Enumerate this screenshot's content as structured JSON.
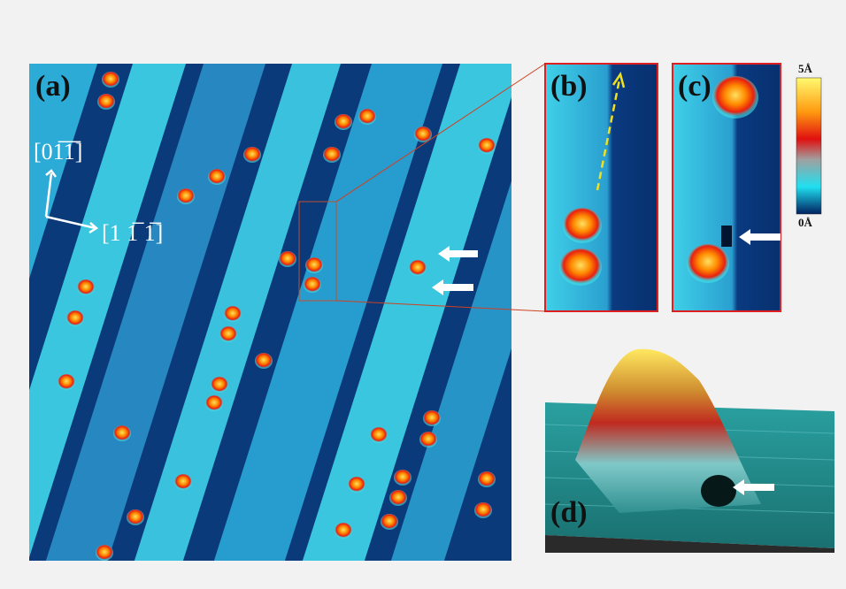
{
  "panels": [
    {
      "label": "(a)"
    },
    {
      "label": "(b)"
    },
    {
      "label": "(c)"
    },
    {
      "label": "(d)"
    }
  ],
  "directions": {
    "vertical": "[01̅1̅]",
    "horizontal": "[1 1̅ 1̅]"
  },
  "colorbar": {
    "max": "5Å",
    "min": "0Å"
  }
}
